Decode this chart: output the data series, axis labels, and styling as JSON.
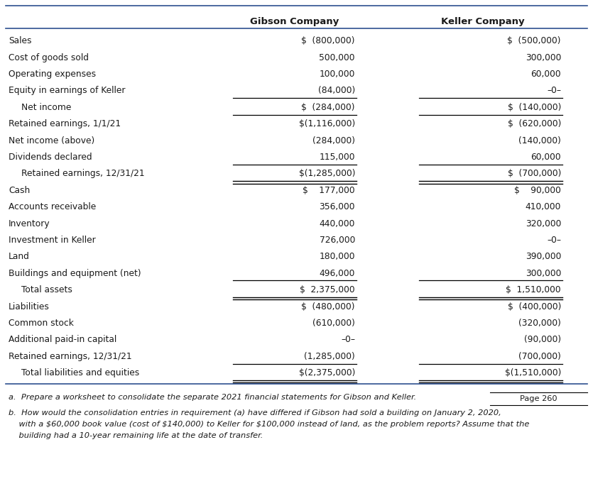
{
  "col_headers": [
    "Gibson Company",
    "Keller Company"
  ],
  "rows": [
    {
      "label": "Sales",
      "gibson": "$  (800,000)",
      "keller": "$  (500,000)",
      "indent": false,
      "ul_g": false,
      "ul_k": false,
      "dul_g": false,
      "dul_k": false
    },
    {
      "label": "Cost of goods sold",
      "gibson": "500,000",
      "keller": "300,000",
      "indent": false,
      "ul_g": false,
      "ul_k": false,
      "dul_g": false,
      "dul_k": false
    },
    {
      "label": "Operating expenses",
      "gibson": "100,000",
      "keller": "60,000",
      "indent": false,
      "ul_g": false,
      "ul_k": false,
      "dul_g": false,
      "dul_k": false
    },
    {
      "label": "Equity in earnings of Keller",
      "gibson": "(84,000)",
      "keller": "–0–",
      "indent": false,
      "ul_g": true,
      "ul_k": true,
      "dul_g": false,
      "dul_k": false
    },
    {
      "label": "Net income",
      "gibson": "$  (284,000)",
      "keller": "$  (140,000)",
      "indent": true,
      "ul_g": true,
      "ul_k": true,
      "dul_g": false,
      "dul_k": false
    },
    {
      "label": "Retained earnings, 1/1/21",
      "gibson": "$(1,116,000)",
      "keller": "$  (620,000)",
      "indent": false,
      "ul_g": false,
      "ul_k": false,
      "dul_g": false,
      "dul_k": false
    },
    {
      "label": "Net income (above)",
      "gibson": "(284,000)",
      "keller": "(140,000)",
      "indent": false,
      "ul_g": false,
      "ul_k": false,
      "dul_g": false,
      "dul_k": false
    },
    {
      "label": "Dividends declared",
      "gibson": "115,000",
      "keller": "60,000",
      "indent": false,
      "ul_g": true,
      "ul_k": true,
      "dul_g": false,
      "dul_k": false
    },
    {
      "label": "Retained earnings, 12/31/21",
      "gibson": "$(1,285,000)",
      "keller": "$  (700,000)",
      "indent": true,
      "ul_g": false,
      "ul_k": false,
      "dul_g": true,
      "dul_k": true
    },
    {
      "label": "Cash",
      "gibson": "$    177,000",
      "keller": "$    90,000",
      "indent": false,
      "ul_g": false,
      "ul_k": false,
      "dul_g": false,
      "dul_k": false
    },
    {
      "label": "Accounts receivable",
      "gibson": "356,000",
      "keller": "410,000",
      "indent": false,
      "ul_g": false,
      "ul_k": false,
      "dul_g": false,
      "dul_k": false
    },
    {
      "label": "Inventory",
      "gibson": "440,000",
      "keller": "320,000",
      "indent": false,
      "ul_g": false,
      "ul_k": false,
      "dul_g": false,
      "dul_k": false
    },
    {
      "label": "Investment in Keller",
      "gibson": "726,000",
      "keller": "–0–",
      "indent": false,
      "ul_g": false,
      "ul_k": false,
      "dul_g": false,
      "dul_k": false
    },
    {
      "label": "Land",
      "gibson": "180,000",
      "keller": "390,000",
      "indent": false,
      "ul_g": false,
      "ul_k": false,
      "dul_g": false,
      "dul_k": false
    },
    {
      "label": "Buildings and equipment (net)",
      "gibson": "496,000",
      "keller": "300,000",
      "indent": false,
      "ul_g": true,
      "ul_k": true,
      "dul_g": false,
      "dul_k": false
    },
    {
      "label": "Total assets",
      "gibson": "$  2,375,000",
      "keller": "$  1,510,000",
      "indent": true,
      "ul_g": false,
      "ul_k": false,
      "dul_g": true,
      "dul_k": true
    },
    {
      "label": "Liabilities",
      "gibson": "$  (480,000)",
      "keller": "$  (400,000)",
      "indent": false,
      "ul_g": false,
      "ul_k": false,
      "dul_g": false,
      "dul_k": false
    },
    {
      "label": "Common stock",
      "gibson": "(610,000)",
      "keller": "(320,000)",
      "indent": false,
      "ul_g": false,
      "ul_k": false,
      "dul_g": false,
      "dul_k": false
    },
    {
      "label": "Additional paid-in capital",
      "gibson": "–0–",
      "keller": "(90,000)",
      "indent": false,
      "ul_g": false,
      "ul_k": false,
      "dul_g": false,
      "dul_k": false
    },
    {
      "label": "Retained earnings, 12/31/21",
      "gibson": "(1,285,000)",
      "keller": "(700,000)",
      "indent": false,
      "ul_g": true,
      "ul_k": true,
      "dul_g": false,
      "dul_k": false
    },
    {
      "label": "Total liabilities and equities",
      "gibson": "$(2,375,000)",
      "keller": "$(1,510,000)",
      "indent": true,
      "ul_g": false,
      "ul_k": false,
      "dul_g": true,
      "dul_k": true
    }
  ],
  "footer_a": "a.  Prepare a worksheet to consolidate the separate 2021 financial statements for Gibson and Keller.",
  "footer_b1": "b.  How would the consolidation entries in requirement (a) have differed if Gibson had sold a building on January 2, 2020,",
  "footer_b2": "    with a $60,000 book value (cost of $140,000) to Keller for $100,000 instead of land, as the problem reports? Assume that the",
  "footer_b3": "    building had a 10-year remaining life at the date of transfer.",
  "page_label": "Page 260",
  "bg_color": "#ffffff",
  "text_color": "#1a1a1a",
  "line_color": "#2e5090",
  "font_size": 8.8,
  "header_font_size": 9.5,
  "footer_font_size": 8.2
}
